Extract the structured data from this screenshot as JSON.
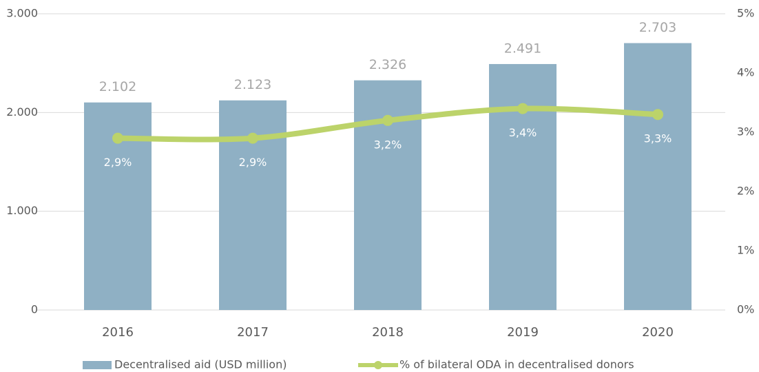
{
  "chart_data": {
    "type": "bar",
    "categories": [
      "2016",
      "2017",
      "2018",
      "2019",
      "2020"
    ],
    "series": [
      {
        "name": "Decentralised aid (USD million)",
        "type": "bar",
        "color": "#8fb0c4",
        "values": [
          2102,
          2123,
          2326,
          2491,
          2703
        ],
        "value_labels": [
          "2.102",
          "2.123",
          "2.326",
          "2.491",
          "2.703"
        ]
      },
      {
        "name": "% of bilateral ODA in decentralised donors",
        "type": "line",
        "axis": "y2",
        "color": "#bcd36a",
        "values": [
          2.9,
          2.9,
          3.2,
          3.4,
          3.3
        ],
        "value_labels": [
          "2,9%",
          "2,9%",
          "3,2%",
          "3,4%",
          "3,3%"
        ]
      }
    ],
    "ylim": [
      0,
      3000
    ],
    "yticks": [
      0,
      {
        "value": 1000,
        "label": "1.000"
      },
      {
        "value": 2000,
        "label": "2.000"
      },
      {
        "value": 3000,
        "label": "3.000"
      }
    ],
    "y2lim": [
      0,
      5
    ],
    "y2ticks": [
      {
        "value": 0,
        "label": "0%"
      },
      {
        "value": 1,
        "label": "1%"
      },
      {
        "value": 2,
        "label": "2%"
      },
      {
        "value": 3,
        "label": "3%"
      },
      {
        "value": 4,
        "label": "4%"
      },
      {
        "value": 5,
        "label": "5%"
      }
    ],
    "grid": true,
    "legend": "bottom"
  }
}
